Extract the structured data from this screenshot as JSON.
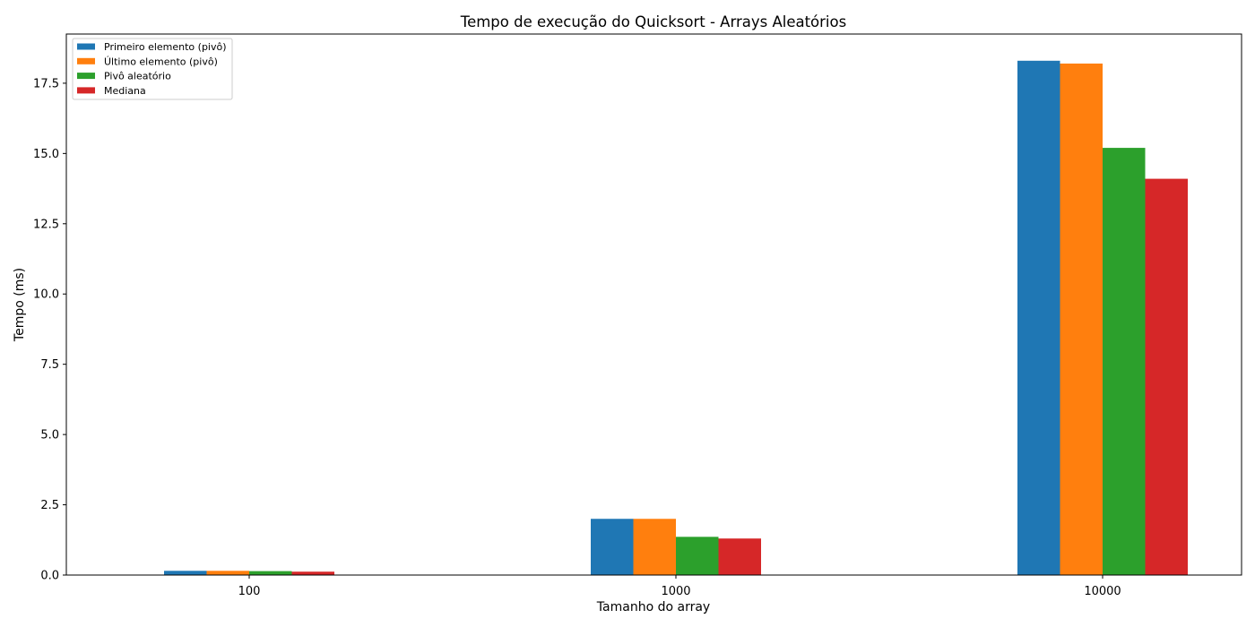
{
  "chart_data": {
    "type": "bar",
    "title": "Tempo de execução do Quicksort - Arrays Aleatórios",
    "xlabel": "Tamanho do array",
    "ylabel": "Tempo (ms)",
    "categories": [
      "100",
      "1000",
      "10000"
    ],
    "series": [
      {
        "name": "Primeiro elemento (pivô)",
        "color": "#1f77b4",
        "values": [
          0.15,
          2.0,
          18.3
        ]
      },
      {
        "name": "Último elemento (pivô)",
        "color": "#ff7f0e",
        "values": [
          0.15,
          2.0,
          18.2
        ]
      },
      {
        "name": "Pivô aleatório",
        "color": "#2ca02c",
        "values": [
          0.14,
          1.36,
          15.2
        ]
      },
      {
        "name": "Mediana",
        "color": "#d62728",
        "values": [
          0.12,
          1.3,
          14.1
        ]
      }
    ],
    "ylim": [
      0,
      19.25
    ],
    "yticks": [
      "0.0",
      "2.5",
      "5.0",
      "7.5",
      "10.0",
      "12.5",
      "15.0",
      "17.5"
    ],
    "legend_position": "upper-left",
    "grid": false
  }
}
